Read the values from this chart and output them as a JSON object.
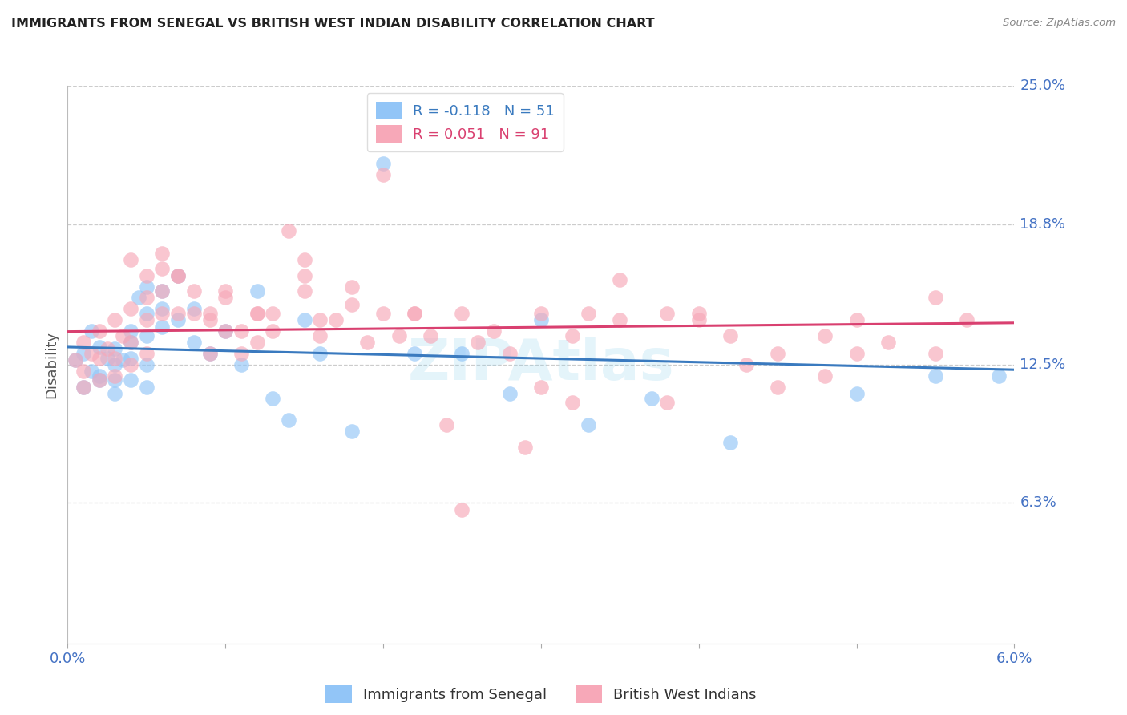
{
  "title": "IMMIGRANTS FROM SENEGAL VS BRITISH WEST INDIAN DISABILITY CORRELATION CHART",
  "source": "Source: ZipAtlas.com",
  "ylabel": "Disability",
  "ylim": [
    0,
    0.25
  ],
  "xlim": [
    0,
    0.06
  ],
  "yticks": [
    0.063,
    0.125,
    0.188,
    0.25
  ],
  "ytick_labels": [
    "6.3%",
    "12.5%",
    "18.8%",
    "25.0%"
  ],
  "xtick_labels": [
    "0.0%",
    "",
    "",
    "",
    "",
    "",
    "6.0%"
  ],
  "blue_color": "#92c5f7",
  "pink_color": "#f7a8b8",
  "blue_fill": "#aad4f5",
  "pink_fill": "#f5b8c8",
  "blue_line_color": "#3a7abf",
  "pink_line_color": "#d94070",
  "axis_label_color": "#4472c4",
  "grid_color": "#cccccc",
  "blue_R": -0.118,
  "blue_N": 51,
  "pink_R": 0.051,
  "pink_N": 91,
  "blue_scatter_x": [
    0.0005,
    0.001,
    0.001,
    0.0015,
    0.0015,
    0.002,
    0.002,
    0.002,
    0.0025,
    0.003,
    0.003,
    0.003,
    0.003,
    0.0035,
    0.004,
    0.004,
    0.004,
    0.004,
    0.0045,
    0.005,
    0.005,
    0.005,
    0.005,
    0.005,
    0.006,
    0.006,
    0.006,
    0.007,
    0.007,
    0.008,
    0.008,
    0.009,
    0.01,
    0.011,
    0.012,
    0.013,
    0.014,
    0.015,
    0.016,
    0.018,
    0.02,
    0.022,
    0.025,
    0.028,
    0.03,
    0.033,
    0.037,
    0.042,
    0.05,
    0.055,
    0.059
  ],
  "blue_scatter_y": [
    0.127,
    0.13,
    0.115,
    0.14,
    0.122,
    0.133,
    0.12,
    0.118,
    0.128,
    0.132,
    0.125,
    0.118,
    0.112,
    0.127,
    0.135,
    0.14,
    0.128,
    0.118,
    0.155,
    0.16,
    0.148,
    0.138,
    0.125,
    0.115,
    0.158,
    0.15,
    0.142,
    0.165,
    0.145,
    0.15,
    0.135,
    0.13,
    0.14,
    0.125,
    0.158,
    0.11,
    0.1,
    0.145,
    0.13,
    0.095,
    0.215,
    0.13,
    0.13,
    0.112,
    0.145,
    0.098,
    0.11,
    0.09,
    0.112,
    0.12,
    0.12
  ],
  "pink_scatter_x": [
    0.0005,
    0.001,
    0.001,
    0.001,
    0.0015,
    0.002,
    0.002,
    0.002,
    0.0025,
    0.003,
    0.003,
    0.003,
    0.0035,
    0.004,
    0.004,
    0.004,
    0.005,
    0.005,
    0.005,
    0.005,
    0.006,
    0.006,
    0.006,
    0.007,
    0.007,
    0.008,
    0.008,
    0.009,
    0.009,
    0.01,
    0.01,
    0.011,
    0.011,
    0.012,
    0.012,
    0.013,
    0.014,
    0.015,
    0.015,
    0.016,
    0.017,
    0.018,
    0.019,
    0.02,
    0.021,
    0.022,
    0.023,
    0.025,
    0.026,
    0.028,
    0.03,
    0.032,
    0.033,
    0.035,
    0.038,
    0.04,
    0.042,
    0.045,
    0.048,
    0.05,
    0.052,
    0.055,
    0.057,
    0.004,
    0.007,
    0.01,
    0.013,
    0.016,
    0.02,
    0.025,
    0.03,
    0.035,
    0.04,
    0.045,
    0.05,
    0.055,
    0.006,
    0.009,
    0.012,
    0.015,
    0.018,
    0.022,
    0.027,
    0.032,
    0.038,
    0.043,
    0.048,
    0.024,
    0.029
  ],
  "pink_scatter_y": [
    0.127,
    0.135,
    0.122,
    0.115,
    0.13,
    0.14,
    0.128,
    0.118,
    0.132,
    0.145,
    0.128,
    0.12,
    0.138,
    0.15,
    0.135,
    0.125,
    0.165,
    0.155,
    0.145,
    0.13,
    0.168,
    0.158,
    0.148,
    0.165,
    0.148,
    0.158,
    0.148,
    0.145,
    0.13,
    0.155,
    0.14,
    0.14,
    0.13,
    0.148,
    0.135,
    0.14,
    0.185,
    0.172,
    0.165,
    0.145,
    0.145,
    0.16,
    0.135,
    0.21,
    0.138,
    0.148,
    0.138,
    0.148,
    0.135,
    0.13,
    0.148,
    0.138,
    0.148,
    0.145,
    0.108,
    0.148,
    0.138,
    0.13,
    0.138,
    0.145,
    0.135,
    0.13,
    0.145,
    0.172,
    0.165,
    0.158,
    0.148,
    0.138,
    0.148,
    0.06,
    0.115,
    0.163,
    0.145,
    0.115,
    0.13,
    0.155,
    0.175,
    0.148,
    0.148,
    0.158,
    0.152,
    0.148,
    0.14,
    0.108,
    0.148,
    0.125,
    0.12,
    0.098,
    0.088
  ]
}
